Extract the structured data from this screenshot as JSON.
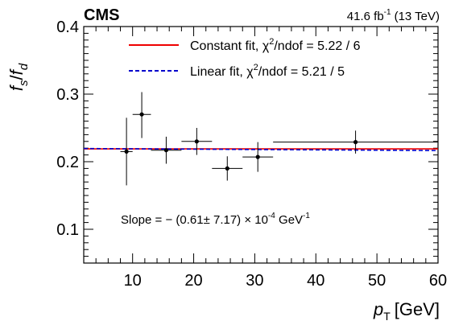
{
  "chart_data": {
    "type": "scatter",
    "experiment_label": "CMS",
    "luminosity_label": "41.6 fb",
    "luminosity_exponent": "-1",
    "energy_label": "(13 TeV)",
    "ylabel_main": "f",
    "ylabel_num_sub": "s",
    "ylabel_sep": "/",
    "ylabel_den_sub": "d",
    "xlabel_main": "p",
    "xlabel_sub": "T",
    "xlabel_unit": "[GeV]",
    "xlim": [
      2,
      60
    ],
    "ylim": [
      0.05,
      0.4
    ],
    "x_ticks": [
      10,
      20,
      30,
      40,
      50,
      60
    ],
    "x_tick_labels": [
      "10",
      "20",
      "30",
      "40",
      "50",
      "60"
    ],
    "y_ticks": [
      0.1,
      0.2,
      0.3,
      0.4
    ],
    "y_tick_labels": [
      "0.1",
      "0.2",
      "0.3",
      "0.4"
    ],
    "points": [
      {
        "x": 9,
        "y": 0.215,
        "xlo": 8,
        "xhi": 10,
        "ylo": 0.165,
        "yhi": 0.265
      },
      {
        "x": 11.5,
        "y": 0.27,
        "xlo": 10,
        "xhi": 13,
        "ylo": 0.235,
        "yhi": 0.303
      },
      {
        "x": 15.5,
        "y": 0.217,
        "xlo": 13,
        "xhi": 18,
        "ylo": 0.197,
        "yhi": 0.237
      },
      {
        "x": 20.5,
        "y": 0.23,
        "xlo": 18,
        "xhi": 23,
        "ylo": 0.21,
        "yhi": 0.25
      },
      {
        "x": 25.5,
        "y": 0.19,
        "xlo": 23,
        "xhi": 28,
        "ylo": 0.172,
        "yhi": 0.208
      },
      {
        "x": 30.5,
        "y": 0.207,
        "xlo": 28,
        "xhi": 33,
        "ylo": 0.185,
        "yhi": 0.229
      },
      {
        "x": 46.5,
        "y": 0.229,
        "xlo": 33,
        "xhi": 60,
        "ylo": 0.212,
        "yhi": 0.246
      }
    ],
    "fits": [
      {
        "label": "Constant fit, χ²/ndof = 5.22 / 6",
        "text_main": "Constant fit, χ",
        "text_sup": "2",
        "text_rest": "/ndof = 5.22 / 6",
        "color": "#ee0000",
        "style": "solid",
        "y0": 0.219,
        "y1": 0.219
      },
      {
        "label": "Linear fit, χ²/ndof = 5.21 / 5",
        "text_main": "Linear fit, χ",
        "text_sup": "2",
        "text_rest": "/ndof = 5.21 / 5",
        "color": "#0000cc",
        "style": "dashed",
        "y0": 0.2195,
        "y1": 0.2165
      }
    ],
    "annotation": {
      "prefix": "Slope = − (0.61",
      "pm": "±",
      "middle": " 7.17) × 10",
      "exp1": "-4",
      "unit": " GeV",
      "exp2": "-1"
    },
    "legend_position": "top-right",
    "grid": false
  }
}
